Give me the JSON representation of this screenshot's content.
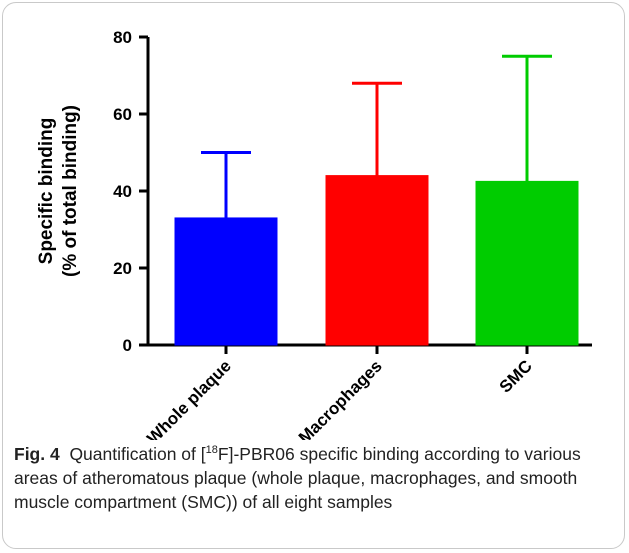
{
  "chart_data": {
    "type": "bar",
    "categories": [
      "Whole plaque",
      "Macrophages",
      "SMC"
    ],
    "values": [
      33,
      44,
      42.5
    ],
    "error_upper": [
      50,
      68,
      75
    ],
    "colors": [
      "#0000ff",
      "#ff0000",
      "#00cc00"
    ],
    "ylabel_line1": "Specific binding",
    "ylabel_line2": "(% of total binding)",
    "ylim": [
      0,
      80
    ],
    "yticks": [
      "0",
      "20",
      "40",
      "60",
      "80"
    ],
    "grid": false
  },
  "caption": {
    "fig_label": "Fig. 4",
    "text_before": "Quantification of [",
    "superscript": "18",
    "text_after": "F]-PBR06 specific binding according to various areas of atheromatous plaque (whole plaque, macrophages, and smooth muscle compartment (SMC)) of all eight samples"
  }
}
